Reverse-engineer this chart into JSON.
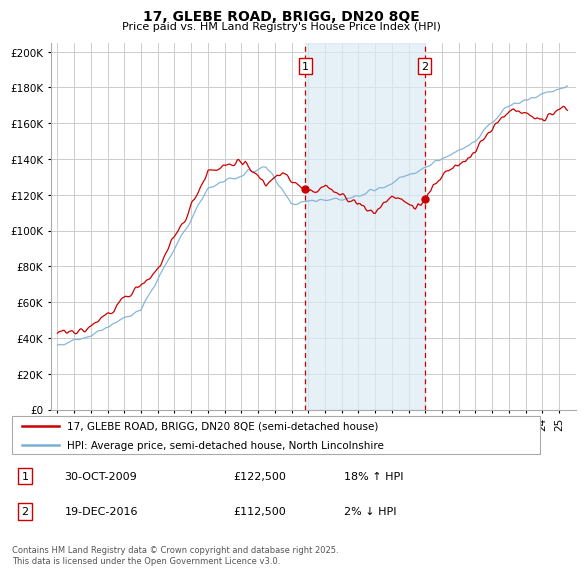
{
  "title": "17, GLEBE ROAD, BRIGG, DN20 8QE",
  "subtitle": "Price paid vs. HM Land Registry's House Price Index (HPI)",
  "background_color": "#ffffff",
  "grid_color": "#cccccc",
  "hpi_color": "#7bafd4",
  "price_color": "#cc0000",
  "vline_color": "#cc0000",
  "shade_color": "#daeaf5",
  "marker1_year": 2009.83,
  "marker2_year": 2016.97,
  "legend1": "17, GLEBE ROAD, BRIGG, DN20 8QE (semi-detached house)",
  "legend2": "HPI: Average price, semi-detached house, North Lincolnshire",
  "note1_date": "30-OCT-2009",
  "note1_price": "£122,500",
  "note1_hpi": "18% ↑ HPI",
  "note2_date": "19-DEC-2016",
  "note2_price": "£112,500",
  "note2_hpi": "2% ↓ HPI",
  "footer": "Contains HM Land Registry data © Crown copyright and database right 2025.\nThis data is licensed under the Open Government Licence v3.0.",
  "xstart": 1995,
  "xend": 2025
}
